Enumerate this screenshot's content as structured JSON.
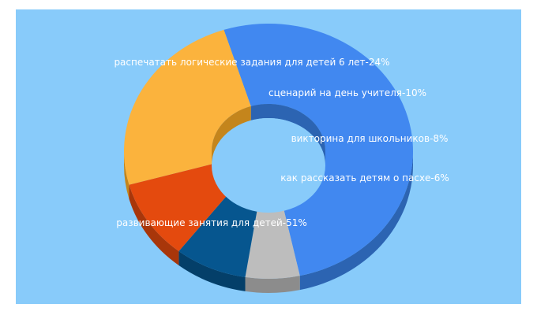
{
  "chart_data": {
    "type": "pie",
    "variant": "3d-donut",
    "title": "",
    "background_color": "#88cbfa",
    "series": [
      {
        "slices": [
          {
            "label": "развивающие занятия для детей-51%",
            "value": 51,
            "color": "#4188f0",
            "side_color": "#2c64b2"
          },
          {
            "label": "как рассказать детям о пасхе-6%",
            "value": 6,
            "color": "#bdbdbd",
            "side_color": "#8c8c8c"
          },
          {
            "label": "викторина для школьников-8%",
            "value": 8,
            "color": "#06568f",
            "side_color": "#043f69"
          },
          {
            "label": "сценарий на день учителя-10%",
            "value": 10,
            "color": "#e44a0e",
            "side_color": "#a8360a"
          },
          {
            "label": "распечатать логические задания для детей 6 лет-24%",
            "value": 24,
            "color": "#fbb33d",
            "side_color": "#c4851c"
          }
        ]
      }
    ]
  }
}
